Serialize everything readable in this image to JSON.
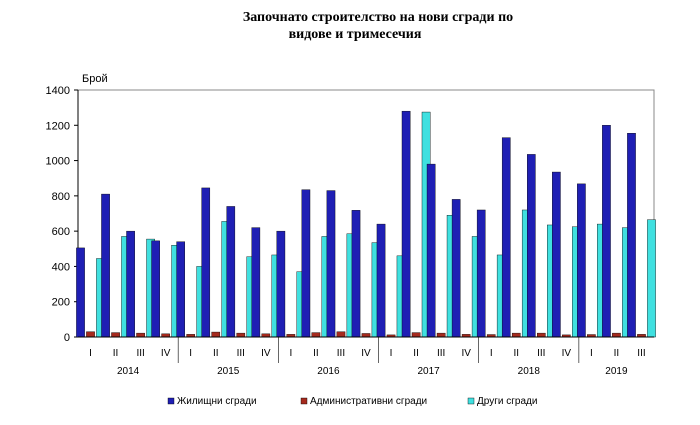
{
  "chart_data": {
    "type": "bar",
    "title_line1": "Започнато строителство на нови сгради по",
    "title_line2": "видове и тримесечия",
    "ylabel": "Брой",
    "ylim": [
      0,
      1400
    ],
    "yticks": [
      0,
      200,
      400,
      600,
      800,
      1000,
      1200,
      1400
    ],
    "grid": false,
    "legend_position": "bottom",
    "categories": [
      "I",
      "II",
      "III",
      "IV",
      "I",
      "II",
      "III",
      "IV",
      "I",
      "II",
      "III",
      "IV",
      "I",
      "II",
      "III",
      "IV",
      "I",
      "II",
      "III",
      "IV",
      "I",
      "II",
      "III"
    ],
    "years": [
      {
        "label": "2014",
        "start": 0,
        "count": 4
      },
      {
        "label": "2015",
        "start": 4,
        "count": 4
      },
      {
        "label": "2016",
        "start": 8,
        "count": 4
      },
      {
        "label": "2017",
        "start": 12,
        "count": 4
      },
      {
        "label": "2018",
        "start": 16,
        "count": 4
      },
      {
        "label": "2019",
        "start": 20,
        "count": 3
      }
    ],
    "series": [
      {
        "name": "Жилищни сгради",
        "color": "#1f1fb4",
        "values": [
          505,
          810,
          600,
          545,
          540,
          845,
          740,
          620,
          600,
          835,
          830,
          718,
          640,
          1280,
          980,
          780,
          720,
          1130,
          1035,
          935,
          868,
          1200,
          1155
        ]
      },
      {
        "name": "Административни  сгради",
        "color": "#a52a1e",
        "values": [
          30,
          25,
          22,
          18,
          15,
          28,
          22,
          18,
          15,
          25,
          30,
          20,
          12,
          25,
          22,
          15,
          14,
          22,
          22,
          12,
          14,
          22,
          15
        ]
      },
      {
        "name": "Други сгради",
        "color": "#3fe0e0",
        "values": [
          445,
          570,
          555,
          520,
          400,
          655,
          455,
          465,
          370,
          570,
          585,
          535,
          460,
          1275,
          690,
          570,
          465,
          720,
          635,
          625,
          640,
          620,
          665
        ]
      }
    ]
  }
}
